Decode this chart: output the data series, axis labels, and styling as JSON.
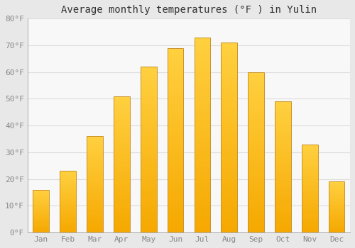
{
  "months": [
    "Jan",
    "Feb",
    "Mar",
    "Apr",
    "May",
    "Jun",
    "Jul",
    "Aug",
    "Sep",
    "Oct",
    "Nov",
    "Dec"
  ],
  "values": [
    16,
    23,
    36,
    51,
    62,
    69,
    73,
    71,
    60,
    49,
    33,
    19
  ],
  "bar_color_top": "#FFD040",
  "bar_color_bottom": "#F5A800",
  "bar_edge_color": "#C8922A",
  "title": "Average monthly temperatures (°F ) in Yulin",
  "ylim": [
    0,
    80
  ],
  "yticks": [
    0,
    10,
    20,
    30,
    40,
    50,
    60,
    70,
    80
  ],
  "ytick_labels": [
    "0°F",
    "10°F",
    "20°F",
    "30°F",
    "40°F",
    "50°F",
    "60°F",
    "70°F",
    "80°F"
  ],
  "figure_bg": "#e8e8e8",
  "plot_bg": "#f8f8f8",
  "grid_color": "#dddddd",
  "title_fontsize": 10,
  "tick_fontsize": 8,
  "tick_color": "#888888",
  "title_color": "#333333"
}
